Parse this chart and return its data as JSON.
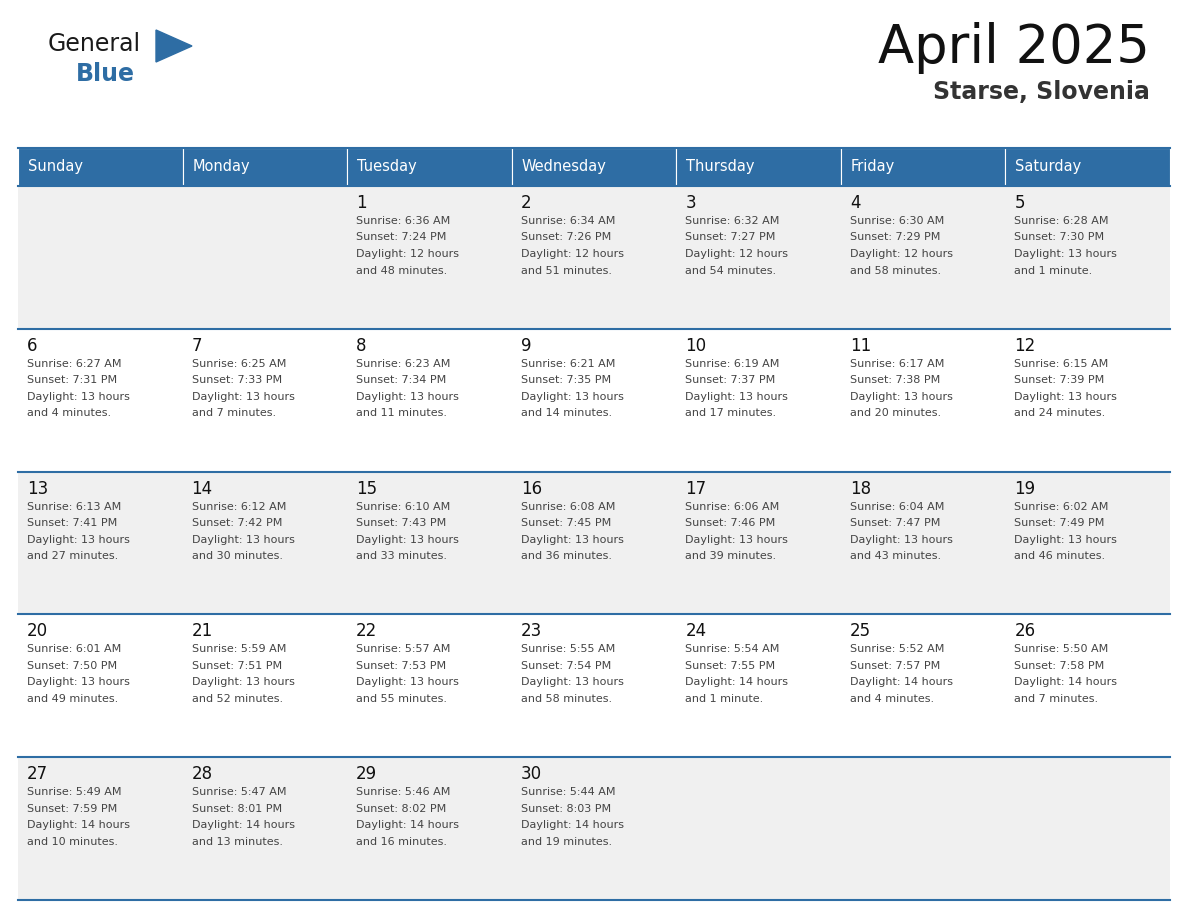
{
  "title": "April 2025",
  "subtitle": "Starse, Slovenia",
  "header_color": "#2E6DA4",
  "header_text_color": "#FFFFFF",
  "days_of_week": [
    "Sunday",
    "Monday",
    "Tuesday",
    "Wednesday",
    "Thursday",
    "Friday",
    "Saturday"
  ],
  "bg_color": "#FFFFFF",
  "cell_bg_even": "#F0F0F0",
  "cell_bg_odd": "#FFFFFF",
  "row_line_color": "#2E6DA4",
  "text_color": "#444444",
  "day_num_color": "#111111",
  "weeks": [
    [
      {
        "day": "",
        "sunrise": "",
        "sunset": "",
        "daylight": ""
      },
      {
        "day": "",
        "sunrise": "",
        "sunset": "",
        "daylight": ""
      },
      {
        "day": "1",
        "sunrise": "6:36 AM",
        "sunset": "7:24 PM",
        "daylight": "12 hours and 48 minutes."
      },
      {
        "day": "2",
        "sunrise": "6:34 AM",
        "sunset": "7:26 PM",
        "daylight": "12 hours and 51 minutes."
      },
      {
        "day": "3",
        "sunrise": "6:32 AM",
        "sunset": "7:27 PM",
        "daylight": "12 hours and 54 minutes."
      },
      {
        "day": "4",
        "sunrise": "6:30 AM",
        "sunset": "7:29 PM",
        "daylight": "12 hours and 58 minutes."
      },
      {
        "day": "5",
        "sunrise": "6:28 AM",
        "sunset": "7:30 PM",
        "daylight": "13 hours and 1 minute."
      }
    ],
    [
      {
        "day": "6",
        "sunrise": "6:27 AM",
        "sunset": "7:31 PM",
        "daylight": "13 hours and 4 minutes."
      },
      {
        "day": "7",
        "sunrise": "6:25 AM",
        "sunset": "7:33 PM",
        "daylight": "13 hours and 7 minutes."
      },
      {
        "day": "8",
        "sunrise": "6:23 AM",
        "sunset": "7:34 PM",
        "daylight": "13 hours and 11 minutes."
      },
      {
        "day": "9",
        "sunrise": "6:21 AM",
        "sunset": "7:35 PM",
        "daylight": "13 hours and 14 minutes."
      },
      {
        "day": "10",
        "sunrise": "6:19 AM",
        "sunset": "7:37 PM",
        "daylight": "13 hours and 17 minutes."
      },
      {
        "day": "11",
        "sunrise": "6:17 AM",
        "sunset": "7:38 PM",
        "daylight": "13 hours and 20 minutes."
      },
      {
        "day": "12",
        "sunrise": "6:15 AM",
        "sunset": "7:39 PM",
        "daylight": "13 hours and 24 minutes."
      }
    ],
    [
      {
        "day": "13",
        "sunrise": "6:13 AM",
        "sunset": "7:41 PM",
        "daylight": "13 hours and 27 minutes."
      },
      {
        "day": "14",
        "sunrise": "6:12 AM",
        "sunset": "7:42 PM",
        "daylight": "13 hours and 30 minutes."
      },
      {
        "day": "15",
        "sunrise": "6:10 AM",
        "sunset": "7:43 PM",
        "daylight": "13 hours and 33 minutes."
      },
      {
        "day": "16",
        "sunrise": "6:08 AM",
        "sunset": "7:45 PM",
        "daylight": "13 hours and 36 minutes."
      },
      {
        "day": "17",
        "sunrise": "6:06 AM",
        "sunset": "7:46 PM",
        "daylight": "13 hours and 39 minutes."
      },
      {
        "day": "18",
        "sunrise": "6:04 AM",
        "sunset": "7:47 PM",
        "daylight": "13 hours and 43 minutes."
      },
      {
        "day": "19",
        "sunrise": "6:02 AM",
        "sunset": "7:49 PM",
        "daylight": "13 hours and 46 minutes."
      }
    ],
    [
      {
        "day": "20",
        "sunrise": "6:01 AM",
        "sunset": "7:50 PM",
        "daylight": "13 hours and 49 minutes."
      },
      {
        "day": "21",
        "sunrise": "5:59 AM",
        "sunset": "7:51 PM",
        "daylight": "13 hours and 52 minutes."
      },
      {
        "day": "22",
        "sunrise": "5:57 AM",
        "sunset": "7:53 PM",
        "daylight": "13 hours and 55 minutes."
      },
      {
        "day": "23",
        "sunrise": "5:55 AM",
        "sunset": "7:54 PM",
        "daylight": "13 hours and 58 minutes."
      },
      {
        "day": "24",
        "sunrise": "5:54 AM",
        "sunset": "7:55 PM",
        "daylight": "14 hours and 1 minute."
      },
      {
        "day": "25",
        "sunrise": "5:52 AM",
        "sunset": "7:57 PM",
        "daylight": "14 hours and 4 minutes."
      },
      {
        "day": "26",
        "sunrise": "5:50 AM",
        "sunset": "7:58 PM",
        "daylight": "14 hours and 7 minutes."
      }
    ],
    [
      {
        "day": "27",
        "sunrise": "5:49 AM",
        "sunset": "7:59 PM",
        "daylight": "14 hours and 10 minutes."
      },
      {
        "day": "28",
        "sunrise": "5:47 AM",
        "sunset": "8:01 PM",
        "daylight": "14 hours and 13 minutes."
      },
      {
        "day": "29",
        "sunrise": "5:46 AM",
        "sunset": "8:02 PM",
        "daylight": "14 hours and 16 minutes."
      },
      {
        "day": "30",
        "sunrise": "5:44 AM",
        "sunset": "8:03 PM",
        "daylight": "14 hours and 19 minutes."
      },
      {
        "day": "",
        "sunrise": "",
        "sunset": "",
        "daylight": ""
      },
      {
        "day": "",
        "sunrise": "",
        "sunset": "",
        "daylight": ""
      },
      {
        "day": "",
        "sunrise": "",
        "sunset": "",
        "daylight": ""
      }
    ]
  ]
}
